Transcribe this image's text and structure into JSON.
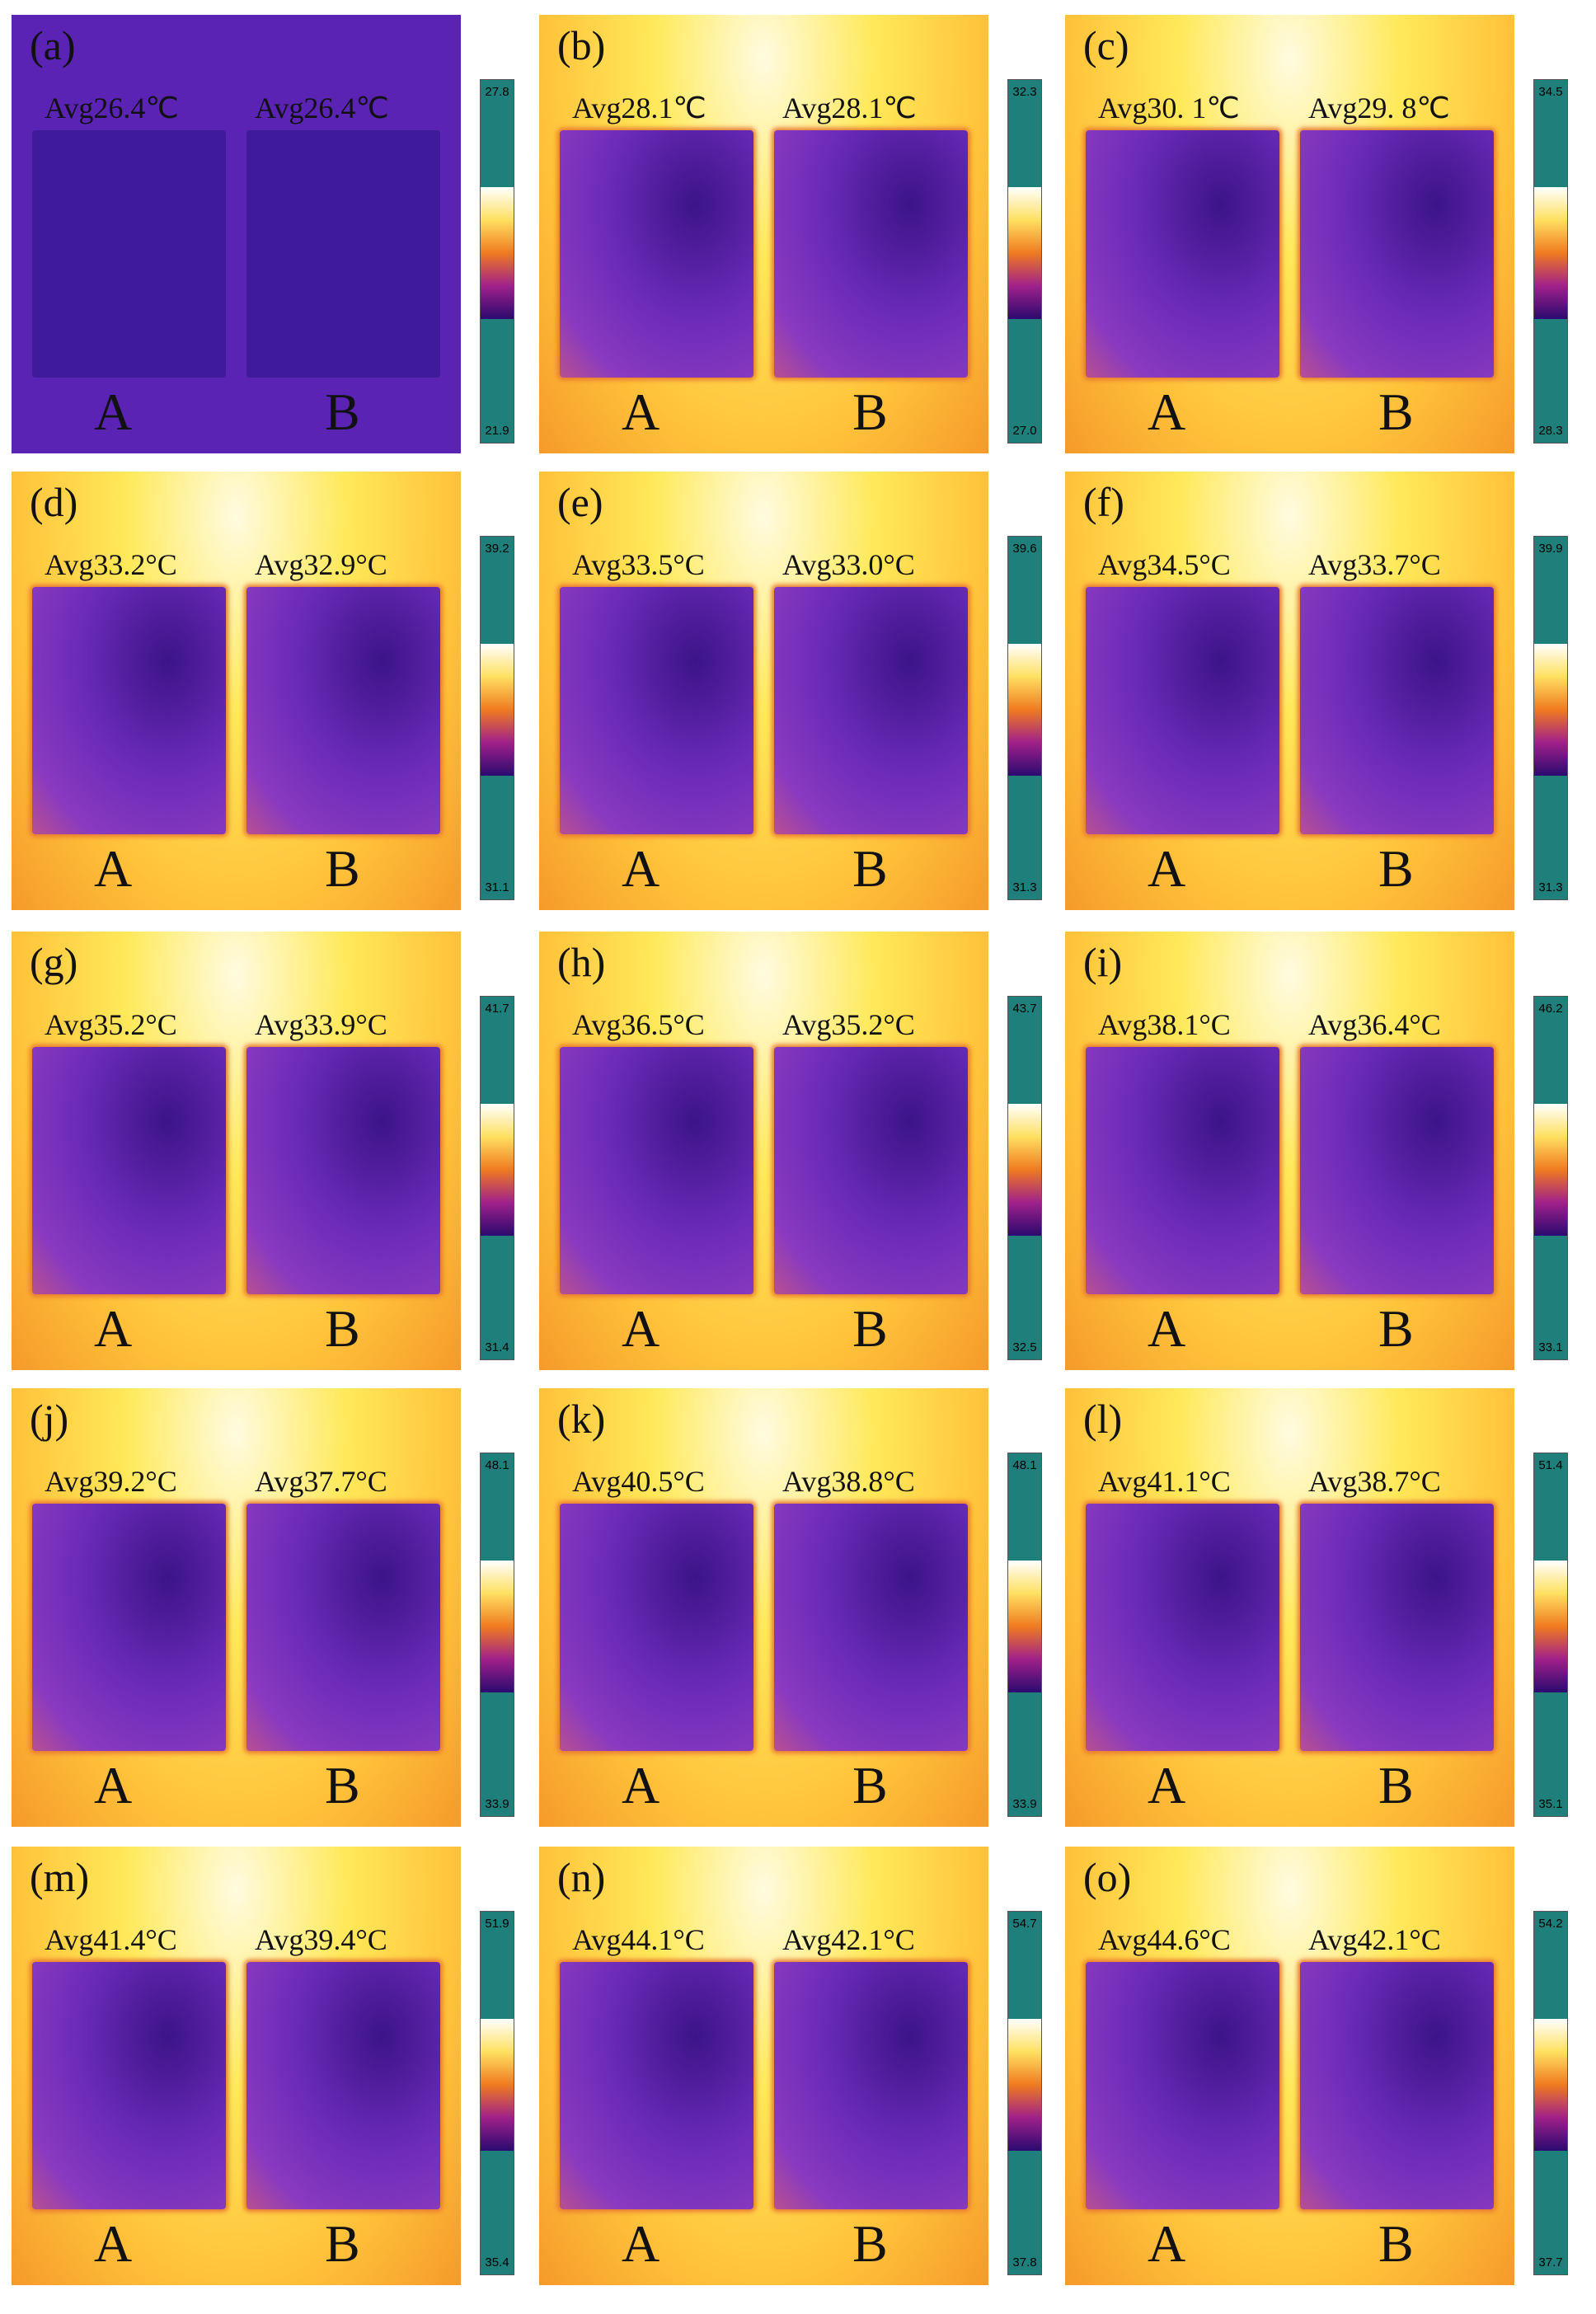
{
  "panels": [
    {
      "label": "(a)",
      "avg_a": "Avg26.4℃",
      "avg_b": "Avg26.4℃",
      "scale_max": "27.8",
      "scale_min": "21.9",
      "sample_a": "A",
      "sample_b": "B"
    },
    {
      "label": "(b)",
      "avg_a": "Avg28.1℃",
      "avg_b": "Avg28.1℃",
      "scale_max": "32.3",
      "scale_min": "27.0",
      "sample_a": "A",
      "sample_b": "B"
    },
    {
      "label": "(c)",
      "avg_a": "Avg30. 1℃",
      "avg_b": "Avg29. 8℃",
      "scale_max": "34.5",
      "scale_min": "28.3",
      "sample_a": "A",
      "sample_b": "B"
    },
    {
      "label": "(d)",
      "avg_a": "Avg33.2°C",
      "avg_b": "Avg32.9°C",
      "scale_max": "39.2",
      "scale_min": "31.1",
      "sample_a": "A",
      "sample_b": "B"
    },
    {
      "label": "(e)",
      "avg_a": "Avg33.5°C",
      "avg_b": "Avg33.0°C",
      "scale_max": "39.6",
      "scale_min": "31.3",
      "sample_a": "A",
      "sample_b": "B"
    },
    {
      "label": "(f)",
      "avg_a": "Avg34.5°C",
      "avg_b": "Avg33.7°C",
      "scale_max": "39.9",
      "scale_min": "31.3",
      "sample_a": "A",
      "sample_b": "B"
    },
    {
      "label": "(g)",
      "avg_a": "Avg35.2°C",
      "avg_b": "Avg33.9°C",
      "scale_max": "41.7",
      "scale_min": "31.4",
      "sample_a": "A",
      "sample_b": "B"
    },
    {
      "label": "(h)",
      "avg_a": "Avg36.5°C",
      "avg_b": "Avg35.2°C",
      "scale_max": "43.7",
      "scale_min": "32.5",
      "sample_a": "A",
      "sample_b": "B"
    },
    {
      "label": "(i)",
      "avg_a": "Avg38.1°C",
      "avg_b": "Avg36.4°C",
      "scale_max": "46.2",
      "scale_min": "33.1",
      "sample_a": "A",
      "sample_b": "B"
    },
    {
      "label": "(j)",
      "avg_a": "Avg39.2°C",
      "avg_b": "Avg37.7°C",
      "scale_max": "48.1",
      "scale_min": "33.9",
      "sample_a": "A",
      "sample_b": "B"
    },
    {
      "label": "(k)",
      "avg_a": "Avg40.5°C",
      "avg_b": "Avg38.8°C",
      "scale_max": "48.1",
      "scale_min": "33.9",
      "sample_a": "A",
      "sample_b": "B"
    },
    {
      "label": "(l)",
      "avg_a": "Avg41.1°C",
      "avg_b": "Avg38.7°C",
      "scale_max": "51.4",
      "scale_min": "35.1",
      "sample_a": "A",
      "sample_b": "B"
    },
    {
      "label": "(m)",
      "avg_a": "Avg41.4°C",
      "avg_b": "Avg39.4°C",
      "scale_max": "51.9",
      "scale_min": "35.4",
      "sample_a": "A",
      "sample_b": "B"
    },
    {
      "label": "(n)",
      "avg_a": "Avg44.1°C",
      "avg_b": "Avg42.1°C",
      "scale_max": "54.7",
      "scale_min": "37.8",
      "sample_a": "A",
      "sample_b": "B"
    },
    {
      "label": "(o)",
      "avg_a": "Avg44.6°C",
      "avg_b": "Avg42.1°C",
      "scale_max": "54.2",
      "scale_min": "37.7",
      "sample_a": "A",
      "sample_b": "B"
    }
  ]
}
